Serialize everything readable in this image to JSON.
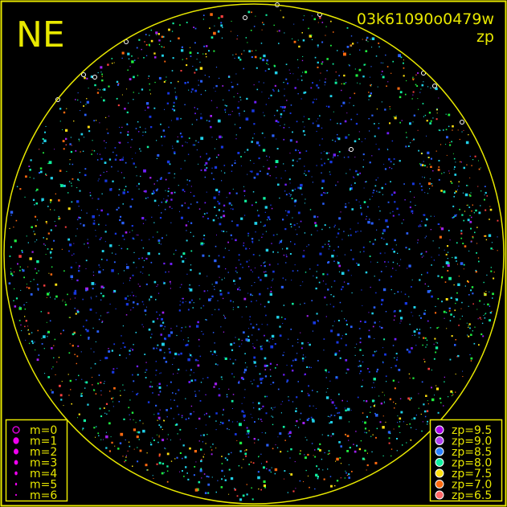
{
  "chart_data": {
    "type": "scatter",
    "title": "03k61090o0479w",
    "subtitle": "zp",
    "corner_label": "NE",
    "projection": "all-sky fisheye (circular horizon)",
    "color_encodes": "zp",
    "size_encodes": "m",
    "magnitude_legend": [
      {
        "label": "m=0",
        "m": 0,
        "marker": "open-circle"
      },
      {
        "label": "m=1",
        "m": 1
      },
      {
        "label": "m=2",
        "m": 2
      },
      {
        "label": "m=3",
        "m": 3
      },
      {
        "label": "m=4",
        "m": 4
      },
      {
        "label": "m=5",
        "m": 5
      },
      {
        "label": "m=6",
        "m": 6
      }
    ],
    "zp_legend": [
      {
        "label": "zp=9.5",
        "zp": 9.5,
        "color": "#a800e8"
      },
      {
        "label": "zp=9.0",
        "zp": 9.0,
        "color": "#b040f0"
      },
      {
        "label": "zp=8.5",
        "zp": 8.5,
        "color": "#2a80ff"
      },
      {
        "label": "zp=8.0",
        "zp": 8.0,
        "color": "#10f0a0"
      },
      {
        "label": "zp=7.5",
        "zp": 7.5,
        "color": "#ffe010"
      },
      {
        "label": "zp=7.0",
        "zp": 7.0,
        "color": "#ff6a10"
      },
      {
        "label": "zp=6.5",
        "zp": 6.5,
        "color": "#ff6868"
      }
    ],
    "colors": {
      "foreground": "#e8e800",
      "background": "#000000"
    }
  }
}
